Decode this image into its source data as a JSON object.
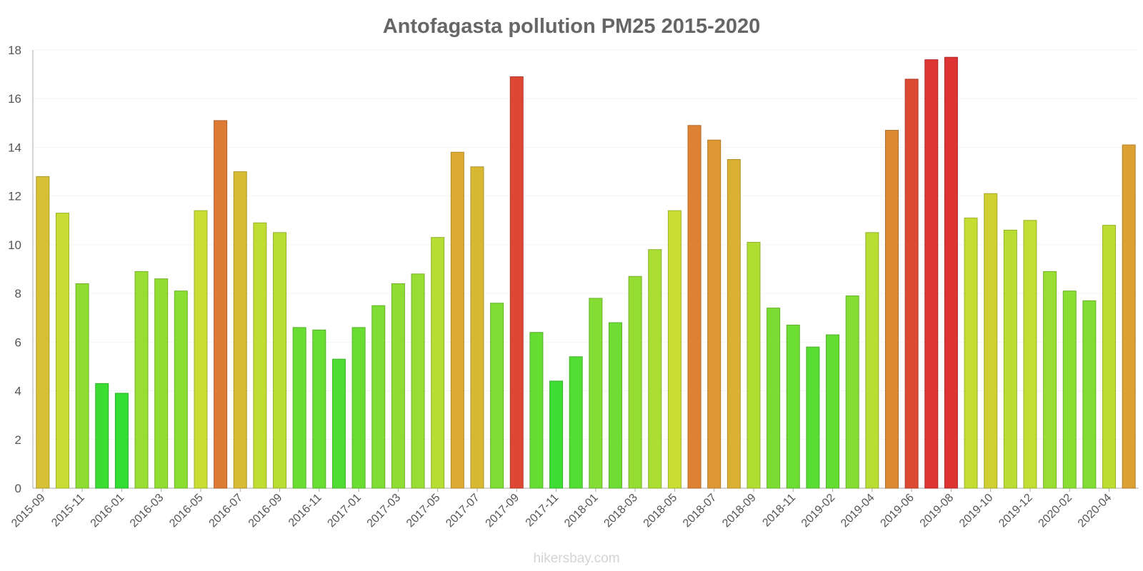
{
  "chart_data": {
    "type": "bar",
    "title": "Antofagasta pollution PM25 2015-2020",
    "xlabel": "",
    "ylabel": "",
    "ylim": [
      0,
      18
    ],
    "yticks": [
      0,
      2,
      4,
      6,
      8,
      10,
      12,
      14,
      16,
      18
    ],
    "grid": true,
    "legend": "none",
    "categories": [
      "2015-09",
      "2015-10",
      "2015-11",
      "2015-12",
      "2016-01",
      "2016-02",
      "2016-03",
      "2016-04",
      "2016-05",
      "2016-06",
      "2016-07",
      "2016-08",
      "2016-09",
      "2016-10",
      "2016-11",
      "2016-12",
      "2017-01",
      "2017-02",
      "2017-03",
      "2017-04",
      "2017-05",
      "2017-06",
      "2017-07",
      "2017-08",
      "2017-09",
      "2017-10",
      "2017-11",
      "2017-12",
      "2018-01",
      "2018-02",
      "2018-03",
      "2018-04",
      "2018-05",
      "2018-06",
      "2018-07",
      "2018-08",
      "2018-09",
      "2018-10",
      "2018-11",
      "2018-12",
      "2019-02",
      "2019-03",
      "2019-04",
      "2019-05",
      "2019-06",
      "2019-07",
      "2019-08",
      "2019-09",
      "2019-10",
      "2019-11",
      "2019-12",
      "2020-01",
      "2020-02",
      "2020-03",
      "2020-04",
      "2020-05"
    ],
    "x_tick_labels": [
      "2015-09",
      "2015-11",
      "2016-01",
      "2016-03",
      "2016-05",
      "2016-07",
      "2016-09",
      "2016-11",
      "2017-01",
      "2017-03",
      "2017-05",
      "2017-07",
      "2017-09",
      "2017-11",
      "2018-01",
      "2018-03",
      "2018-05",
      "2018-07",
      "2018-09",
      "2018-11",
      "2019-02",
      "2019-04",
      "2019-06",
      "2019-08",
      "2019-10",
      "2019-12",
      "2020-02",
      "2020-04"
    ],
    "values": [
      12.8,
      11.3,
      8.4,
      4.3,
      3.9,
      8.9,
      8.6,
      8.1,
      11.4,
      15.1,
      13.0,
      10.9,
      10.5,
      6.6,
      6.5,
      5.3,
      6.6,
      7.5,
      8.4,
      8.8,
      10.3,
      13.8,
      13.2,
      7.6,
      16.9,
      6.4,
      4.4,
      5.4,
      7.8,
      6.8,
      8.7,
      9.8,
      11.4,
      14.9,
      14.3,
      13.5,
      10.1,
      7.4,
      6.7,
      5.8,
      6.3,
      7.9,
      10.5,
      14.7,
      16.8,
      17.6,
      17.7,
      11.1,
      12.1,
      10.6,
      11.0,
      8.9,
      8.1,
      7.7,
      10.8,
      14.1
    ],
    "color_scale": {
      "low": "#33dd33",
      "mid_low": "#88dd33",
      "mid": "#ccdd33",
      "mid_high": "#ddaa33",
      "high": "#dd6633",
      "max": "#dd3333"
    },
    "footer": "hikersbay.com"
  }
}
